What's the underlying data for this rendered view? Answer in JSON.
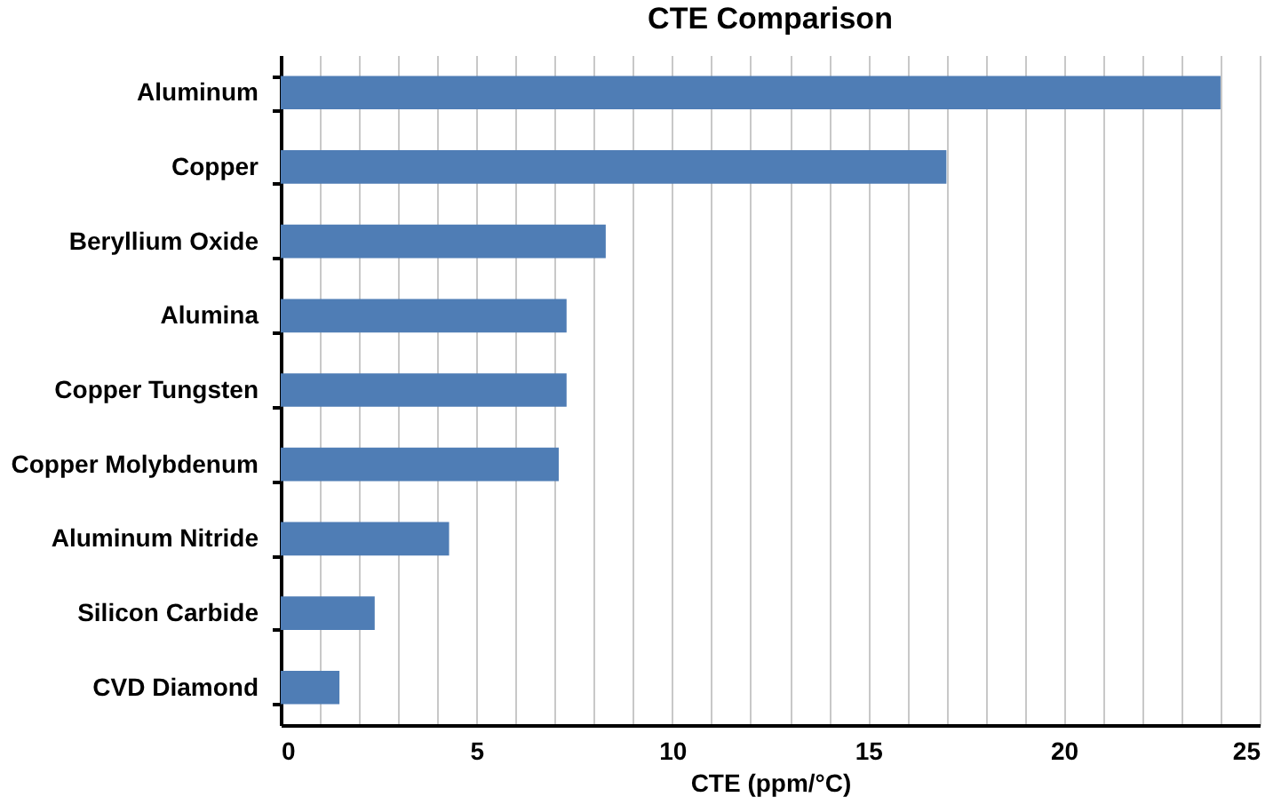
{
  "chart_data": {
    "type": "bar",
    "orientation": "horizontal",
    "title": "CTE Comparison",
    "xlabel": "CTE (ppm/°C)",
    "categories": [
      "Aluminum",
      "Copper",
      "Beryllium Oxide",
      "Alumina",
      "Copper Tungsten",
      "Copper Molybdenum",
      "Aluminum Nitride",
      "Silicon Carbide",
      "CVD Diamond"
    ],
    "values": [
      24,
      17,
      8.3,
      7.3,
      7.3,
      7.1,
      4.3,
      2.4,
      1.5
    ],
    "color": "#4f7db5",
    "xlim": [
      0,
      25
    ],
    "xticks": [
      0,
      {
        "value": 1,
        "label": null
      },
      {
        "value": 2,
        "label": null
      },
      {
        "value": 3,
        "label": null
      },
      {
        "value": 4,
        "label": null
      },
      5,
      {
        "value": 6,
        "label": null
      },
      {
        "value": 7,
        "label": null
      },
      {
        "value": 8,
        "label": null
      },
      {
        "value": 9,
        "label": null
      },
      10,
      {
        "value": 11,
        "label": null
      },
      {
        "value": 12,
        "label": null
      },
      {
        "value": 13,
        "label": null
      },
      {
        "value": 14,
        "label": null
      },
      15,
      {
        "value": 16,
        "label": null
      },
      {
        "value": 17,
        "label": null
      },
      {
        "value": 18,
        "label": null
      },
      {
        "value": 19,
        "label": null
      },
      20,
      {
        "value": 21,
        "label": null
      },
      {
        "value": 22,
        "label": null
      },
      {
        "value": 23,
        "label": null
      },
      {
        "value": 24,
        "label": null
      },
      25
    ],
    "grid": "x"
  }
}
